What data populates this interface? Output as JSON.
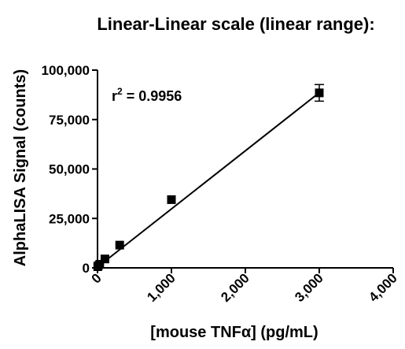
{
  "chart_data": {
    "type": "scatter",
    "title": "Linear-Linear scale (linear range):",
    "xlabel": "[mouse TNFα] (pg/mL)",
    "ylabel": "AlphaLISA Signal (counts)",
    "annotation": {
      "base": "r",
      "superscript": "2",
      "value": " = 0.9956"
    },
    "xlim": [
      0,
      4000
    ],
    "ylim": [
      0,
      100000
    ],
    "x_ticks": [
      0,
      1000,
      2000,
      3000,
      4000
    ],
    "x_tick_labels": [
      "0",
      "1,000",
      "2,000",
      "3,000",
      "4,000"
    ],
    "y_ticks": [
      0,
      25000,
      50000,
      75000,
      100000
    ],
    "y_tick_labels": [
      "0",
      "25,000",
      "50,000",
      "75,000",
      "100,000"
    ],
    "grid": false,
    "legend": false,
    "points": [
      {
        "x": 3,
        "y": 600
      },
      {
        "x": 10,
        "y": 1100
      },
      {
        "x": 30,
        "y": 1800
      },
      {
        "x": 100,
        "y": 4500
      },
      {
        "x": 300,
        "y": 11500
      },
      {
        "x": 1000,
        "y": 34500
      },
      {
        "x": 3000,
        "y": 88500,
        "error": 4200
      }
    ],
    "fit_line": {
      "slope": 29.4,
      "intercept": 400,
      "x_range": [
        0,
        3000
      ]
    },
    "colors": {
      "marks": "#000000",
      "axes": "#000000"
    }
  }
}
